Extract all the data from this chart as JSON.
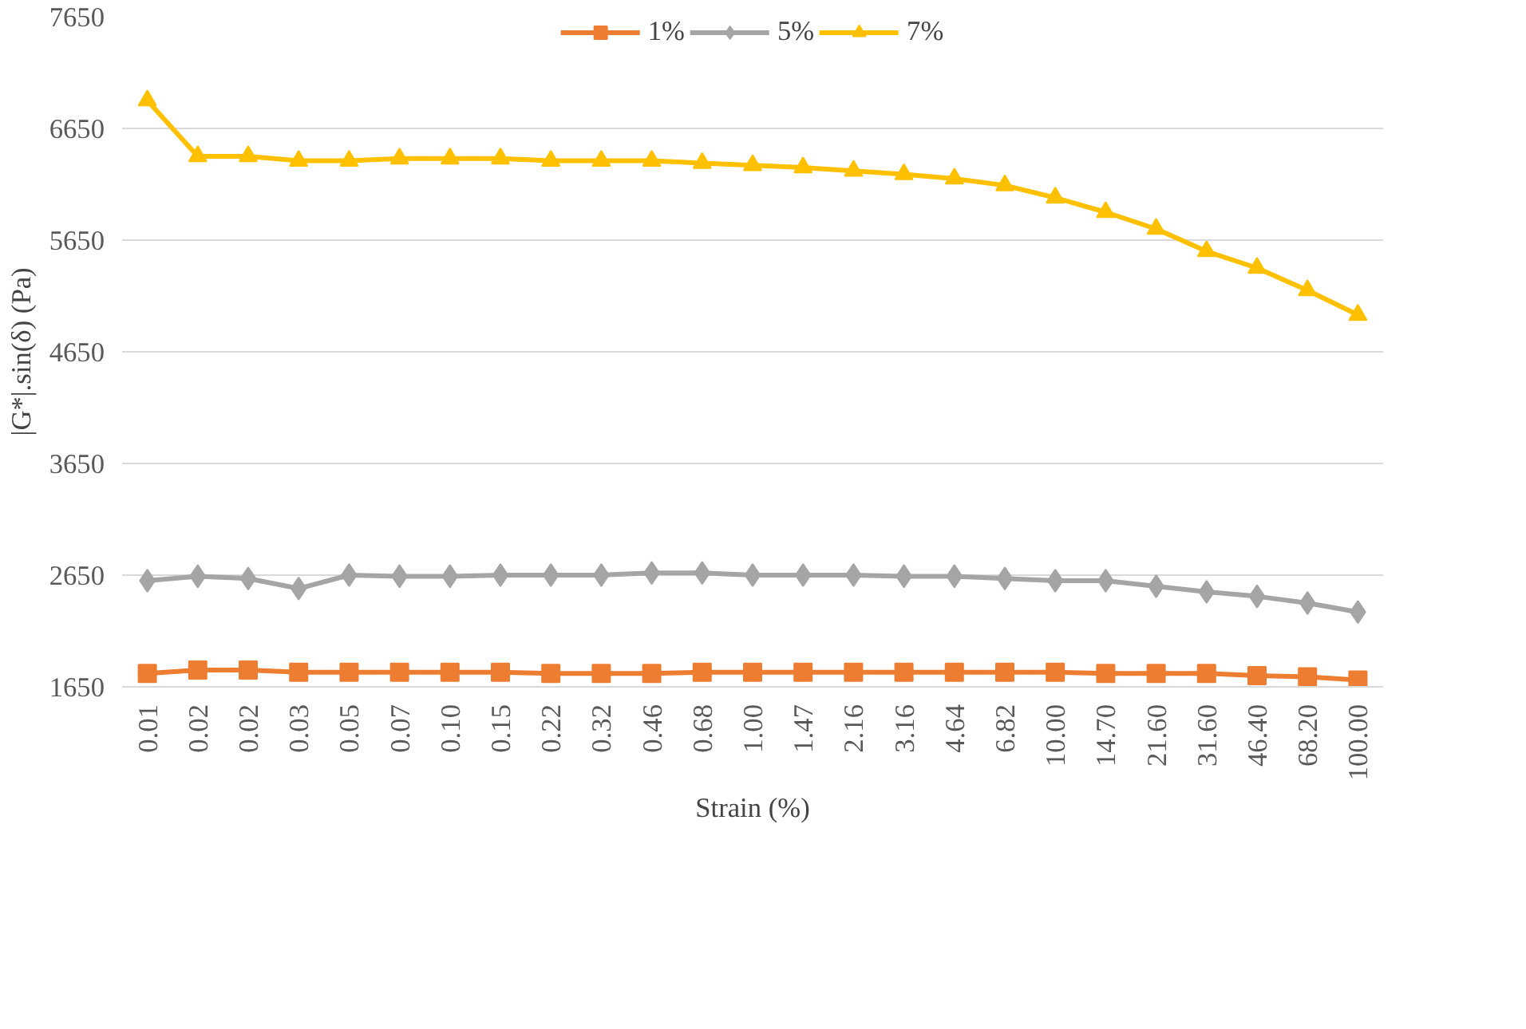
{
  "chart_data": {
    "type": "line",
    "xlabel": "Strain (%)",
    "ylabel": "|G*|.sin(δ) (Pa)",
    "categories": [
      "0.01",
      "0.02",
      "0.02",
      "0.03",
      "0.05",
      "0.07",
      "0.10",
      "0.15",
      "0.22",
      "0.32",
      "0.46",
      "0.68",
      "1.00",
      "1.47",
      "2.16",
      "3.16",
      "4.64",
      "6.82",
      "10.00",
      "14.70",
      "21.60",
      "31.60",
      "46.40",
      "68.20",
      "100.00"
    ],
    "series": [
      {
        "name": "1%",
        "color": "#ed7d31",
        "marker": "square",
        "values": [
          1770,
          1800,
          1800,
          1780,
          1780,
          1780,
          1780,
          1780,
          1770,
          1770,
          1770,
          1780,
          1780,
          1780,
          1780,
          1780,
          1780,
          1780,
          1780,
          1770,
          1770,
          1770,
          1750,
          1740,
          1710
        ]
      },
      {
        "name": "5%",
        "color": "#a5a5a5",
        "marker": "diamond",
        "values": [
          2600,
          2640,
          2620,
          2530,
          2650,
          2640,
          2640,
          2650,
          2650,
          2650,
          2670,
          2670,
          2650,
          2650,
          2650,
          2640,
          2640,
          2620,
          2600,
          2600,
          2550,
          2500,
          2460,
          2400,
          2320
        ]
      },
      {
        "name": "7%",
        "color": "#ffc000",
        "marker": "triangle",
        "values": [
          6900,
          6400,
          6400,
          6360,
          6360,
          6380,
          6380,
          6380,
          6360,
          6360,
          6360,
          6340,
          6320,
          6300,
          6270,
          6240,
          6200,
          6140,
          6030,
          5900,
          5750,
          5550,
          5400,
          5200,
          4980
        ]
      }
    ],
    "ylim": [
      1650,
      7650
    ],
    "yticks": [
      1650,
      2650,
      3650,
      4650,
      5650,
      6650,
      7650
    ],
    "grid": "y",
    "legend": "top",
    "line_style": "solid"
  }
}
